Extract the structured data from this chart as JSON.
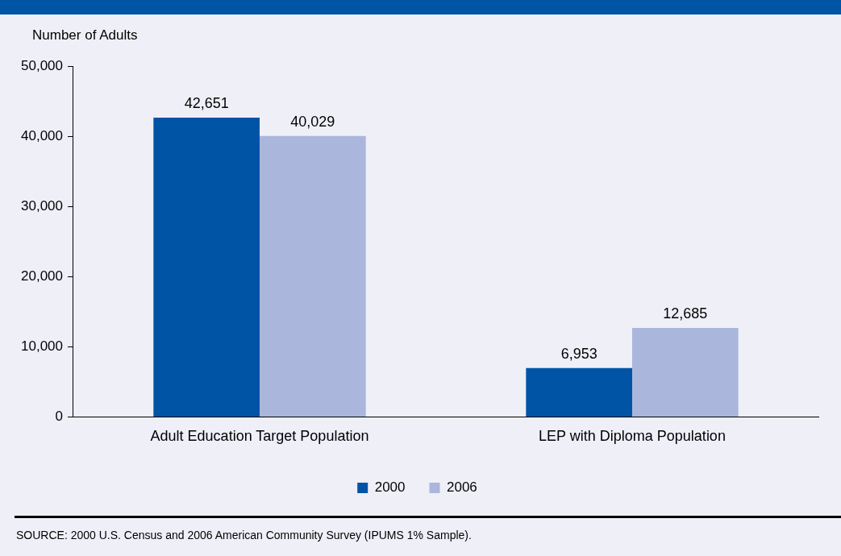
{
  "chart_data": {
    "type": "bar",
    "ylabel": "Number of Adults",
    "categories": [
      "Adult Education Target Population",
      "LEP with Diploma Population"
    ],
    "series": [
      {
        "name": "2000",
        "color": "#0054a6",
        "values": [
          42651,
          6953
        ],
        "value_labels": [
          "42,651",
          "6,953"
        ]
      },
      {
        "name": "2006",
        "color": "#aab6db",
        "values": [
          40029,
          12685
        ],
        "value_labels": [
          "40,029",
          "12,685"
        ]
      }
    ],
    "ylim": [
      0,
      50000
    ],
    "yticks": [
      {
        "value": 0,
        "label": "0"
      },
      {
        "value": 10000,
        "label": "10,000"
      },
      {
        "value": 20000,
        "label": "20,000"
      },
      {
        "value": 30000,
        "label": "30,000"
      },
      {
        "value": 40000,
        "label": "40,000"
      },
      {
        "value": 50000,
        "label": "50,000"
      }
    ],
    "grid": false,
    "legend": "bottom",
    "annotations": [
      "SOURCE: 2000 U.S. Census and 2006 American Community Survey (IPUMS 1% Sample)."
    ]
  }
}
